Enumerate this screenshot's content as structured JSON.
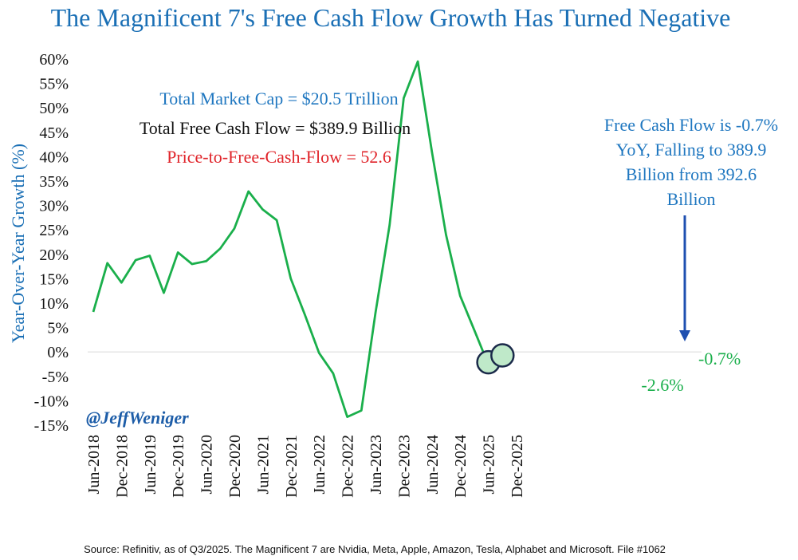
{
  "chart_data": {
    "type": "line",
    "title": "The Magnificent 7's Free Cash Flow Growth Has Turned Negative",
    "ylabel": "Year-Over-Year Growth (%)",
    "xlabel": "",
    "ylim": [
      -15,
      60
    ],
    "y_ticks": [
      "60%",
      "55%",
      "50%",
      "45%",
      "40%",
      "35%",
      "30%",
      "25%",
      "20%",
      "15%",
      "10%",
      "5%",
      "0%",
      "-5%",
      "-10%",
      "-15%"
    ],
    "x_ticks": [
      "Jun-2018",
      "Dec-2018",
      "Jun-2019",
      "Dec-2019",
      "Jun-2020",
      "Dec-2020",
      "Jun-2021",
      "Dec-2021",
      "Jun-2022",
      "Dec-2022",
      "Jun-2023",
      "Dec-2023",
      "Jun-2024",
      "Dec-2024",
      "Jun-2025",
      "Dec-2025"
    ],
    "x": [
      "Jun-2018",
      "Sep-2018",
      "Dec-2018",
      "Mar-2019",
      "Jun-2019",
      "Sep-2019",
      "Dec-2019",
      "Mar-2020",
      "Jun-2020",
      "Sep-2020",
      "Dec-2020",
      "Mar-2021",
      "Jun-2021",
      "Sep-2021",
      "Dec-2021",
      "Mar-2022",
      "Jun-2022",
      "Sep-2022",
      "Dec-2022",
      "Mar-2023",
      "Jun-2023",
      "Sep-2023",
      "Dec-2023",
      "Mar-2024",
      "Jun-2024",
      "Sep-2024",
      "Dec-2024",
      "Mar-2025",
      "Jun-2025",
      "Sep-2025"
    ],
    "series": [
      {
        "values": [
          8.2,
          18.2,
          14.2,
          18.8,
          19.7,
          12.1,
          20.4,
          18.0,
          18.6,
          21.2,
          25.3,
          32.9,
          29.2,
          27.0,
          15.0,
          7.6,
          -0.2,
          -4.4,
          -13.3,
          -12.0,
          8.0,
          26.0,
          52.0,
          59.5,
          41.0,
          24.0,
          11.5,
          4.5,
          -2.6,
          -0.7
        ]
      }
    ],
    "grid": false,
    "legend": "none",
    "line_color": "#1aaf4b",
    "zero_line_color": "#e6e6e6"
  },
  "annotations": {
    "market_cap": "Total Market Cap = $20.5 Trillion",
    "free_cash_flow": "Total Free Cash Flow = $389.9 Billion",
    "price_to_fcf": "Price-to-Free-Cash-Flow = 52.6",
    "callout_lines": [
      "Free Cash Flow is -0.7%",
      "YoY, Falling to 389.9",
      "Billion from 392.6",
      "Billion"
    ],
    "label_last": "-0.7%",
    "label_prev": "-2.6%",
    "handle": "@JeffWeniger"
  },
  "footer": {
    "source": "Source: Refinitiv, as of Q3/2025. The Magnificent 7 are Nvidia, Meta, Apple, Amazon, Tesla, Alphabet and Microsoft. File #1062"
  },
  "colors": {
    "title_blue": "#1a6fb5",
    "callout_blue": "#1f77c0",
    "price_red": "#e0242a",
    "text_black": "#111111",
    "circle_fill": "#bfe9c9",
    "circle_stroke": "#1b2a4a",
    "arrow_blue": "#1e4fb0",
    "handle_blue": "#1d5da8"
  }
}
